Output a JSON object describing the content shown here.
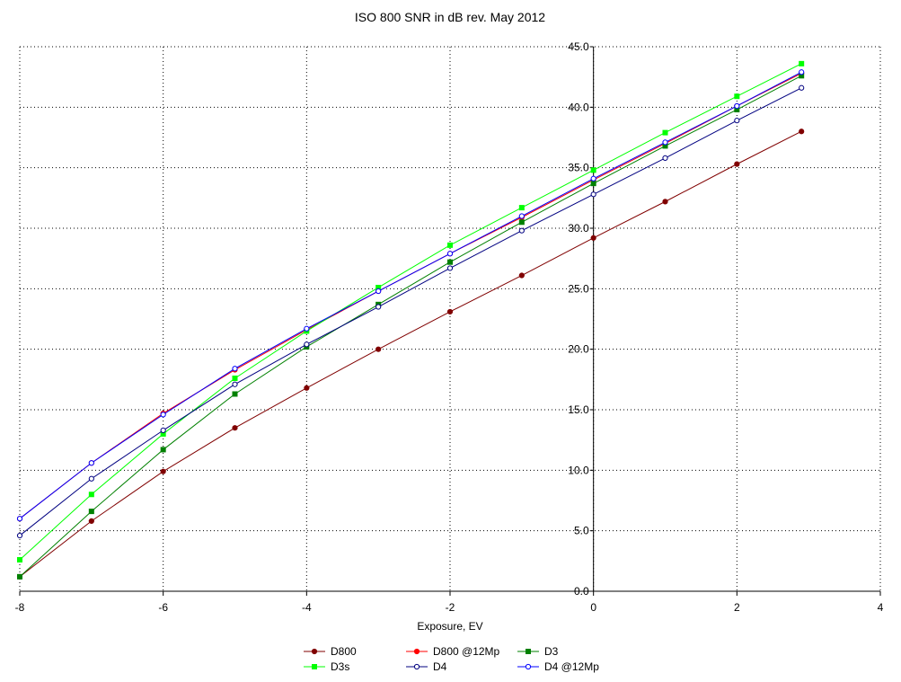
{
  "chart_data": {
    "type": "line",
    "title": "ISO 800 SNR in dB rev. May 2012",
    "xlabel": "Exposure, EV",
    "ylabel": "",
    "xlim": [
      -8,
      4
    ],
    "ylim": [
      0,
      45
    ],
    "x_ticks": [
      "-8",
      "-6",
      "-4",
      "-2",
      "0",
      "2",
      "4"
    ],
    "y_ticks": [
      "0.0",
      "5.0",
      "10.0",
      "15.0",
      "20.0",
      "25.0",
      "30.0",
      "35.0",
      "40.0",
      "45.0"
    ],
    "grid": true,
    "legend_position": "bottom",
    "x": [
      -8,
      -7,
      -6,
      -5,
      -4,
      -3,
      -2,
      -1,
      0,
      1,
      2,
      2.9
    ],
    "series": [
      {
        "name": "D800",
        "color": "#800000",
        "marker": "filled-circle",
        "values": [
          1.2,
          5.8,
          9.9,
          13.5,
          16.8,
          20.0,
          23.1,
          26.1,
          29.2,
          32.2,
          35.3,
          38.0
        ]
      },
      {
        "name": "D800 @12Mp",
        "color": "#ff0000",
        "marker": "filled-circle",
        "values": [
          6.0,
          10.6,
          14.7,
          18.3,
          21.6,
          24.8,
          27.9,
          30.9,
          34.0,
          37.0,
          40.1,
          42.8
        ]
      },
      {
        "name": "D3",
        "color": "#008000",
        "marker": "filled-square",
        "values": [
          1.2,
          6.6,
          11.7,
          16.3,
          20.2,
          23.7,
          27.2,
          30.5,
          33.7,
          36.8,
          39.8,
          42.6
        ]
      },
      {
        "name": "D3s",
        "color": "#00ff00",
        "marker": "filled-square",
        "values": [
          2.6,
          8.0,
          13.0,
          17.6,
          21.5,
          25.1,
          28.6,
          31.7,
          34.8,
          37.9,
          40.9,
          43.6
        ]
      },
      {
        "name": "D4",
        "color": "#000080",
        "marker": "open-circle",
        "values": [
          4.6,
          9.3,
          13.3,
          17.1,
          20.4,
          23.5,
          26.7,
          29.8,
          32.8,
          35.8,
          38.9,
          41.6
        ]
      },
      {
        "name": "D4 @12Mp",
        "color": "#0000ff",
        "marker": "open-circle",
        "values": [
          6.0,
          10.6,
          14.6,
          18.4,
          21.7,
          24.8,
          27.9,
          31.0,
          34.1,
          37.1,
          40.1,
          42.9
        ]
      }
    ]
  }
}
